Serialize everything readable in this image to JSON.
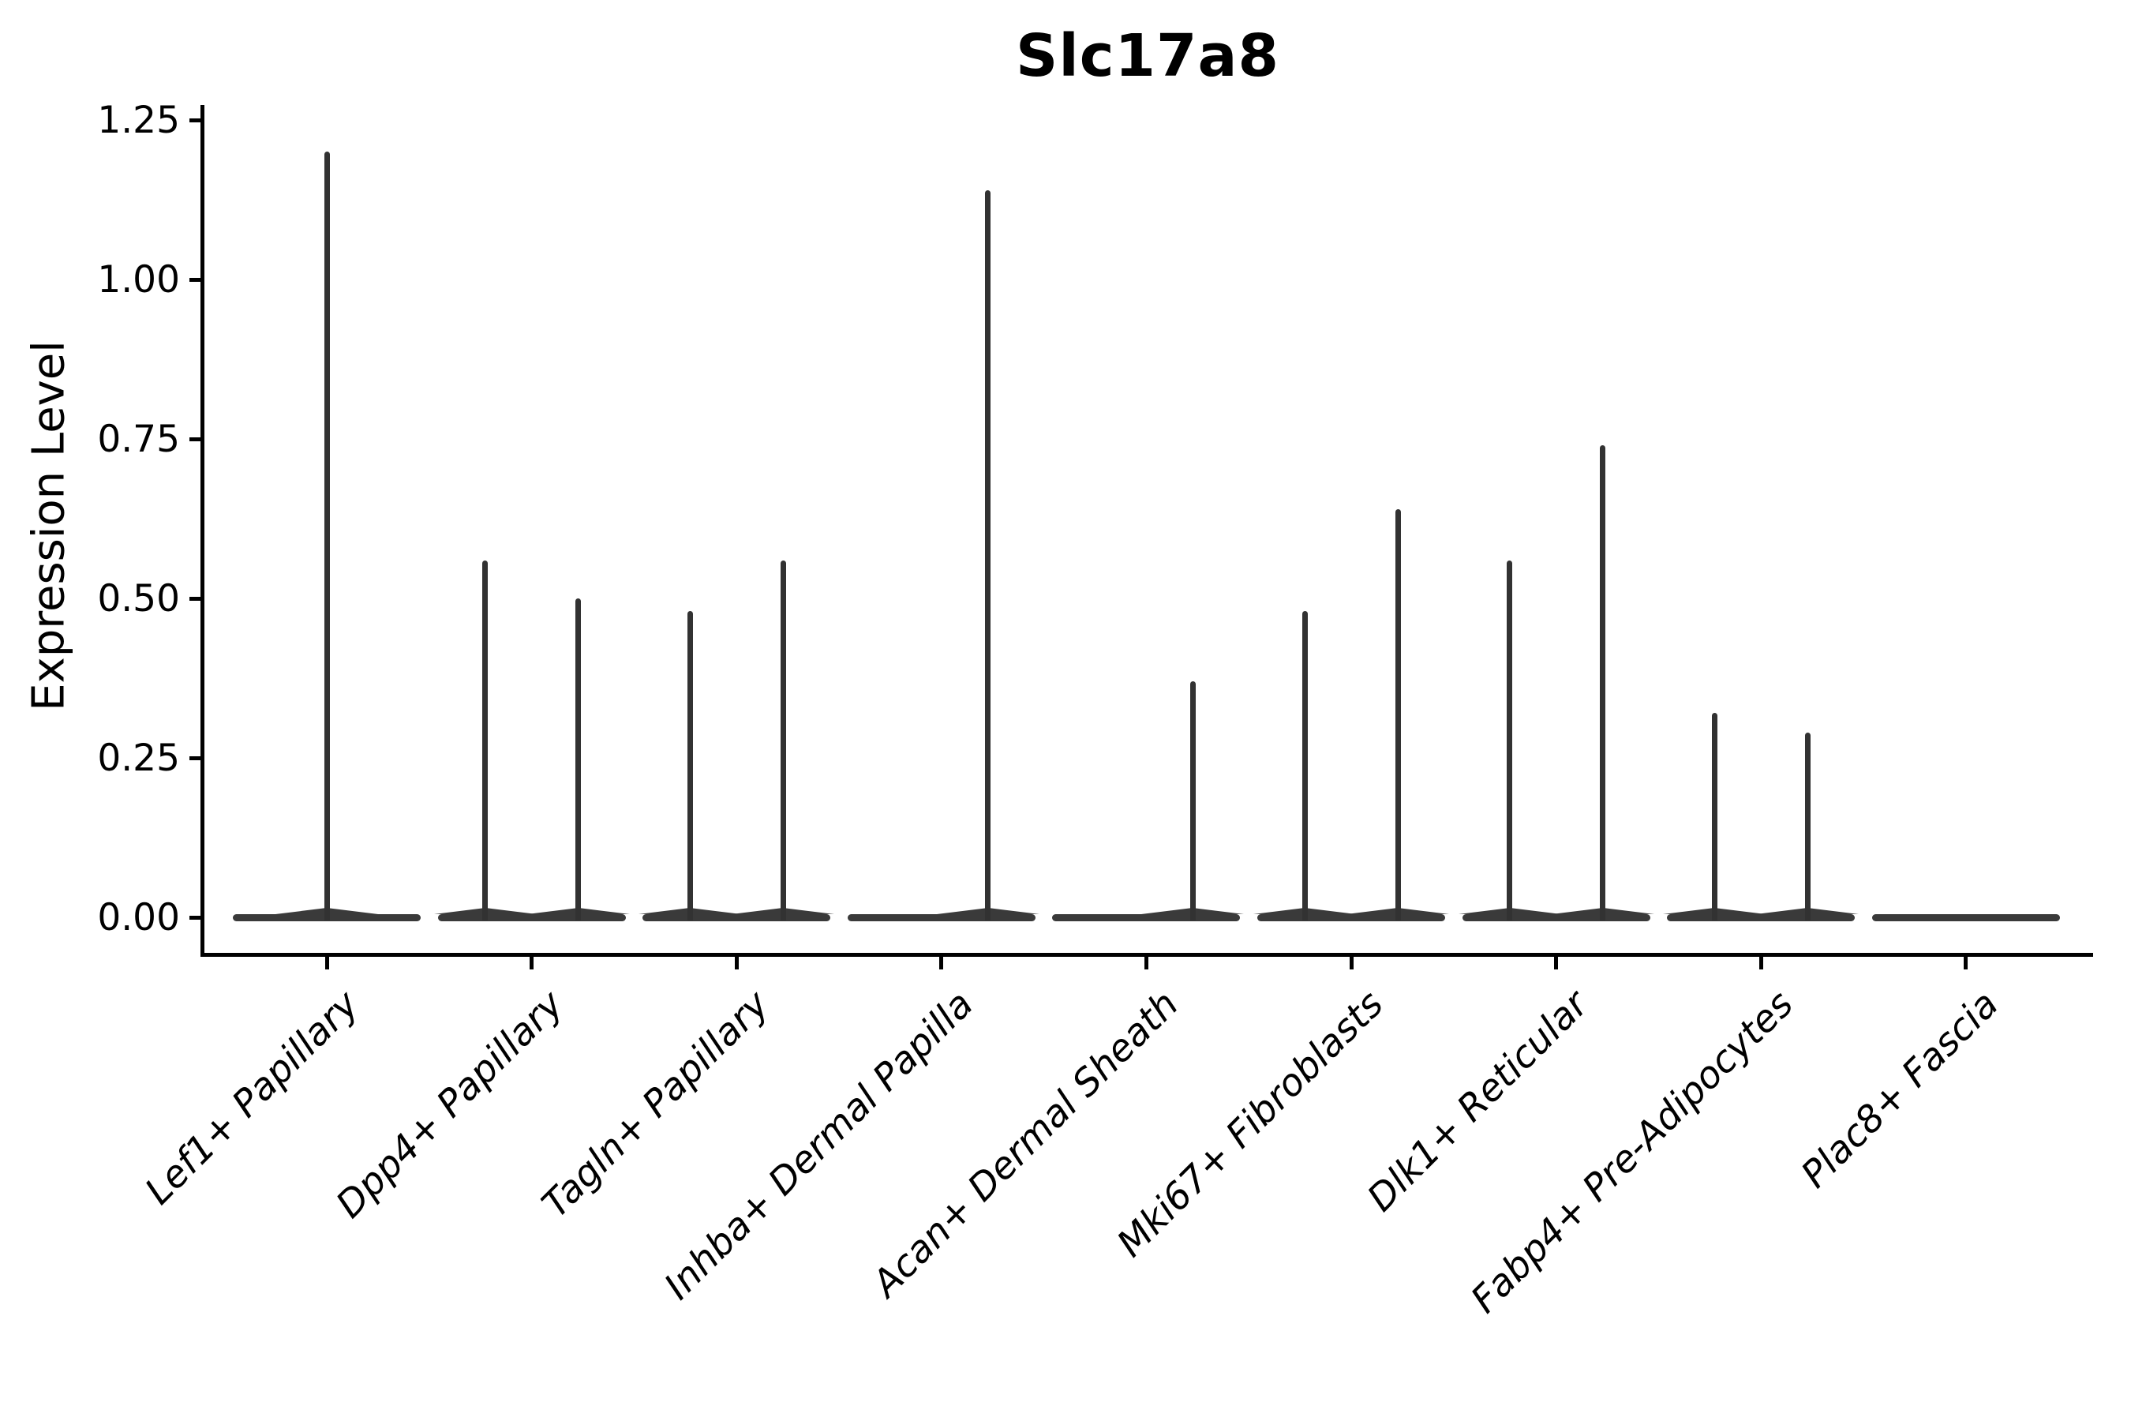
{
  "figure": {
    "background": "#ffffff",
    "line_color": "#333333",
    "text_color": "#000000"
  },
  "chart_data": {
    "type": "violin",
    "title": "Slc17a8",
    "ylabel": "Expression Level",
    "xlabel": "",
    "grid": false,
    "legend": "none",
    "ylim": [
      -0.06,
      1.27
    ],
    "yticks": [
      {
        "value": 0.0,
        "label": "0.00"
      },
      {
        "value": 0.25,
        "label": "0.25"
      },
      {
        "value": 0.5,
        "label": "0.50"
      },
      {
        "value": 0.75,
        "label": "0.75"
      },
      {
        "value": 1.0,
        "label": "1.00"
      },
      {
        "value": 1.25,
        "label": "1.25"
      }
    ],
    "description": "Each category shows a flat violin base at expression 0 with thin density spikes rising to the maximum expression value; spike position is the violin center (center, or left/right half of the category slot).",
    "categories": [
      {
        "label": "Lef1+ Papillary",
        "violins": [
          {
            "position": "center",
            "max": 1.2
          }
        ]
      },
      {
        "label": "Dpp4+ Papillary",
        "violins": [
          {
            "position": "left",
            "max": 0.56
          },
          {
            "position": "right",
            "max": 0.5
          }
        ]
      },
      {
        "label": "Tagln+ Papillary",
        "violins": [
          {
            "position": "left",
            "max": 0.48
          },
          {
            "position": "right",
            "max": 0.56
          }
        ]
      },
      {
        "label": "Inhba+ Dermal Papilla",
        "violins": [
          {
            "position": "right",
            "max": 1.14
          }
        ]
      },
      {
        "label": "Acan+ Dermal Sheath",
        "violins": [
          {
            "position": "right",
            "max": 0.37
          }
        ]
      },
      {
        "label": "Mki67+ Fibroblasts",
        "violins": [
          {
            "position": "left",
            "max": 0.48
          },
          {
            "position": "right",
            "max": 0.64
          }
        ]
      },
      {
        "label": "Dlk1+ Reticular",
        "violins": [
          {
            "position": "left",
            "max": 0.56
          },
          {
            "position": "right",
            "max": 0.74
          }
        ]
      },
      {
        "label": "Fabp4+ Pre-Adipocytes",
        "violins": [
          {
            "position": "left",
            "max": 0.32
          },
          {
            "position": "right",
            "max": 0.29
          }
        ]
      },
      {
        "label": "Plac8+ Fascia",
        "violins": []
      }
    ]
  }
}
